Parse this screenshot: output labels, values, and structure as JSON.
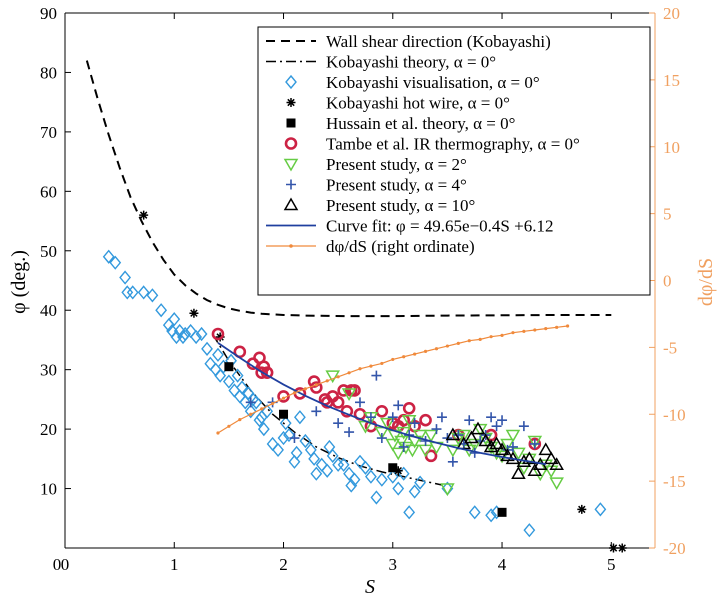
{
  "chart_data": {
    "type": "scatter",
    "title": "",
    "xlabel": "S",
    "ylabel": "φ (deg.)",
    "ylabel_right": "dφ/dS",
    "xlim": [
      0,
      5.4
    ],
    "ylim": [
      0,
      90
    ],
    "ylim_right": [
      -20,
      20
    ],
    "x_ticks": [
      0,
      1,
      2,
      3,
      4,
      5
    ],
    "y_ticks": [
      10,
      20,
      30,
      40,
      50,
      60,
      70,
      80,
      90
    ],
    "y_ticks_right": [
      -20,
      -15,
      -10,
      -5,
      0,
      5,
      10,
      15,
      20
    ],
    "y_zero_label": "0",
    "grid": false,
    "legend_position": "top-right",
    "colors": {
      "axis": "#000000",
      "right_axis": "#f0a060",
      "diamond": "#3399dd",
      "tambe": "#cc2244",
      "tri_down": "#66cc44",
      "plus": "#3355aa",
      "fit": "#1f3f9f",
      "deriv": "#f08a3c"
    },
    "series": [
      {
        "name": "Wall shear direction (Kobayashi)",
        "kind": "line-dashed",
        "x": [
          0.2,
          0.3,
          0.4,
          0.5,
          0.6,
          0.7,
          0.8,
          0.9,
          1.0,
          1.1,
          1.2,
          1.3,
          1.4,
          1.5,
          1.6,
          1.7,
          1.8,
          1.9,
          2.0,
          2.2,
          2.4,
          2.6,
          2.8,
          3.0,
          3.5,
          4.0,
          4.5,
          5.0
        ],
        "y": [
          82,
          75.5,
          69.5,
          64,
          59,
          55,
          51.5,
          48.5,
          46,
          44.2,
          42.8,
          41.7,
          40.9,
          40.3,
          39.9,
          39.6,
          39.4,
          39.3,
          39.2,
          39.1,
          39.05,
          39.0,
          39.0,
          39.0,
          39.1,
          39.15,
          39.2,
          39.2
        ]
      },
      {
        "name": "Kobayashi theory, α = 0°",
        "kind": "line-dashdot",
        "x": [
          1.35,
          1.5,
          1.7,
          1.9,
          2.1,
          2.3,
          2.5,
          2.7,
          2.9,
          3.1,
          3.3,
          3.45
        ],
        "y": [
          36,
          31.5,
          26.5,
          22.5,
          19.5,
          17,
          15.2,
          13.8,
          12.8,
          12.0,
          11.2,
          10.6
        ]
      },
      {
        "name": "Kobayashi visualisation, α = 0°",
        "kind": "diamond",
        "x": [
          0.4,
          0.46,
          0.55,
          0.57,
          0.62,
          0.72,
          0.8,
          0.88,
          0.95,
          0.98,
          1.0,
          1.02,
          1.05,
          1.08,
          1.1,
          1.15,
          1.2,
          1.25,
          1.3,
          1.33,
          1.38,
          1.4,
          1.42,
          1.45,
          1.5,
          1.52,
          1.55,
          1.58,
          1.6,
          1.62,
          1.65,
          1.68,
          1.7,
          1.72,
          1.75,
          1.78,
          1.8,
          1.82,
          1.85,
          1.9,
          1.95,
          2.0,
          2.02,
          2.05,
          2.1,
          2.12,
          2.15,
          2.2,
          2.25,
          2.28,
          2.3,
          2.35,
          2.4,
          2.42,
          2.45,
          2.5,
          2.55,
          2.6,
          2.62,
          2.65,
          2.7,
          2.75,
          2.8,
          2.85,
          2.9,
          3.0,
          3.05,
          3.1,
          3.15,
          3.2,
          3.25,
          3.5,
          3.75,
          3.9,
          3.95,
          4.25,
          4.9
        ],
        "y": [
          49,
          48,
          45.5,
          43,
          43,
          43,
          42.5,
          40,
          37.5,
          36.5,
          38.5,
          35.5,
          36.5,
          35.5,
          36,
          36.5,
          35.5,
          36,
          33.5,
          31,
          30,
          32.5,
          29,
          30.5,
          28,
          31.5,
          26.5,
          29,
          25.5,
          27,
          24.5,
          26,
          23,
          25,
          24.5,
          21.5,
          22,
          20,
          23,
          17.5,
          16.5,
          18.5,
          21,
          19,
          14.5,
          16,
          22,
          18,
          16.5,
          15,
          12.5,
          14,
          13,
          17,
          15.5,
          14,
          14,
          12.5,
          10.5,
          11.5,
          14.5,
          13.5,
          12,
          8.5,
          11.5,
          12,
          10,
          12.5,
          6,
          9.5,
          11,
          10,
          6,
          5.5,
          6,
          3,
          6.5
        ]
      },
      {
        "name": "Kobayashi hot wire, α = 0°",
        "kind": "asterisk",
        "x": [
          0.72,
          1.18,
          1.42,
          3.05,
          4.73,
          5.02,
          5.1
        ],
        "y": [
          56,
          39.5,
          35.5,
          13,
          6.5,
          0,
          0
        ]
      },
      {
        "name": "Hussain et al. theory, α = 0°",
        "kind": "square",
        "x": [
          1.5,
          2.0,
          3.0,
          4.0
        ],
        "y": [
          30.5,
          22.5,
          13.5,
          6
        ]
      },
      {
        "name": "Tambe et al. IR thermography, α = 0°",
        "kind": "circle",
        "x": [
          1.4,
          1.6,
          1.72,
          1.78,
          1.8,
          1.82,
          1.85,
          2.0,
          2.15,
          2.28,
          2.3,
          2.38,
          2.4,
          2.45,
          2.5,
          2.55,
          2.58,
          2.62,
          2.65,
          2.7,
          2.8,
          2.9,
          3.0,
          3.05,
          3.1,
          3.15,
          3.2,
          3.3,
          3.35,
          3.6,
          3.9,
          4.3
        ],
        "y": [
          36,
          33,
          31,
          32,
          29.5,
          30.5,
          29.5,
          25.5,
          26,
          28,
          27,
          25,
          24.5,
          25.5,
          24.5,
          26.5,
          23,
          26.5,
          26.5,
          22.5,
          20.5,
          23,
          21,
          20.5,
          21.5,
          23.5,
          20.5,
          21.5,
          15.5,
          19,
          19,
          17.5
        ]
      },
      {
        "name": "Present study, α = 2°",
        "kind": "tri-down",
        "x": [
          2.45,
          2.6,
          2.75,
          2.8,
          2.9,
          2.95,
          3.0,
          3.02,
          3.05,
          3.08,
          3.1,
          3.12,
          3.15,
          3.18,
          3.2,
          3.25,
          3.3,
          3.35,
          3.4,
          3.5,
          3.55,
          3.6,
          3.65,
          3.7,
          3.75,
          3.8,
          3.85,
          3.9,
          3.95,
          4.0,
          4.05,
          4.1,
          4.15,
          4.2,
          4.25,
          4.3,
          4.35,
          4.4,
          4.45,
          4.5
        ],
        "y": [
          29,
          26,
          20.5,
          22,
          19.5,
          21,
          17.5,
          19,
          16,
          18,
          19.5,
          17,
          21.5,
          16.5,
          18,
          19,
          16.5,
          19,
          17,
          10,
          16.5,
          18.5,
          19,
          16.5,
          17.5,
          20,
          18.5,
          17,
          16,
          15.5,
          17.5,
          19,
          16,
          13.5,
          15,
          18,
          12.5,
          14,
          13,
          11
        ]
      },
      {
        "name": "Present study, α = 4°",
        "kind": "plus",
        "x": [
          1.7,
          1.9,
          2.1,
          2.3,
          2.5,
          2.6,
          2.7,
          2.8,
          2.85,
          2.9,
          3.0,
          3.05,
          3.1,
          3.15,
          3.2,
          3.3,
          3.4,
          3.45,
          3.5,
          3.55,
          3.6,
          3.65,
          3.7,
          3.75,
          3.8,
          3.85,
          3.9,
          3.95,
          4.0,
          4.05,
          4.1,
          4.2,
          4.3
        ],
        "y": [
          24.5,
          24.5,
          18.5,
          23,
          21,
          19.5,
          24.5,
          22,
          29,
          18.5,
          22,
          24,
          17,
          19,
          21,
          18,
          20,
          22,
          18.5,
          14.5,
          19,
          17.5,
          21.5,
          16,
          18,
          19,
          22,
          20.5,
          21.5,
          16.5,
          17,
          20.5,
          17.5
        ]
      },
      {
        "name": "Present study, α = 10°",
        "kind": "tri-up",
        "x": [
          3.55,
          3.65,
          3.72,
          3.78,
          3.85,
          3.9,
          3.95,
          4.0,
          4.05,
          4.1,
          4.15,
          4.2,
          4.25,
          4.3,
          4.35,
          4.4,
          4.45,
          4.5
        ],
        "y": [
          19,
          17.5,
          18.5,
          20,
          18,
          17,
          17.5,
          16.5,
          15.5,
          15,
          12.5,
          14.5,
          15,
          13,
          14,
          16.5,
          15,
          14
        ]
      },
      {
        "name": "Curve fit: φ = 49.65e−0.4S +6.12",
        "kind": "line-solid",
        "x": [
          1.4,
          1.6,
          1.8,
          2.0,
          2.2,
          2.4,
          2.6,
          2.8,
          3.0,
          3.2,
          3.4,
          3.6,
          3.8,
          4.0,
          4.2,
          4.4
        ],
        "y": [
          34.5,
          32.0,
          29.6,
          27.5,
          25.6,
          23.9,
          22.4,
          21.0,
          19.8,
          18.7,
          17.7,
          16.8,
          16.0,
          15.3,
          14.7,
          14.1
        ]
      },
      {
        "name": "dφ/dS (right ordinate)",
        "kind": "line-dots-right",
        "x": [
          1.4,
          1.5,
          1.6,
          1.7,
          1.8,
          1.9,
          2.0,
          2.1,
          2.2,
          2.3,
          2.4,
          2.5,
          2.6,
          2.7,
          2.8,
          2.9,
          3.0,
          3.1,
          3.2,
          3.3,
          3.4,
          3.5,
          3.6,
          3.7,
          3.8,
          3.9,
          4.0,
          4.1,
          4.2,
          4.3,
          4.4,
          4.5,
          4.6
        ],
        "y": [
          -11.4,
          -10.9,
          -10.4,
          -10.0,
          -9.6,
          -9.2,
          -8.8,
          -8.4,
          -8.1,
          -7.8,
          -7.5,
          -7.2,
          -6.9,
          -6.6,
          -6.4,
          -6.2,
          -5.9,
          -5.7,
          -5.5,
          -5.3,
          -5.1,
          -4.9,
          -4.7,
          -4.5,
          -4.4,
          -4.2,
          -4.1,
          -3.9,
          -3.8,
          -3.7,
          -3.6,
          -3.5,
          -3.4
        ]
      }
    ]
  }
}
